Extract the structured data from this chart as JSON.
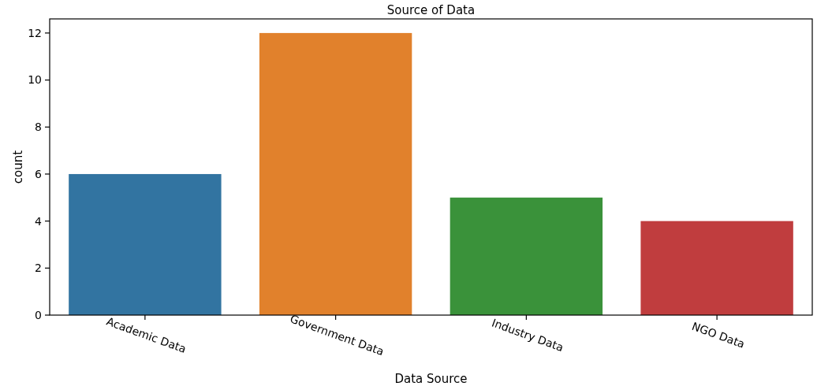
{
  "chart_data": {
    "type": "bar",
    "title": "Source of Data",
    "xlabel": "Data Source",
    "ylabel": "count",
    "categories": [
      "Academic Data",
      "Government Data",
      "Industry Data",
      "NGO Data"
    ],
    "values": [
      6,
      12,
      5,
      4
    ],
    "colors": [
      "#3274a1",
      "#e1812c",
      "#3a923a",
      "#c03d3e"
    ],
    "ylim": [
      0,
      12.6
    ],
    "yticks": [
      0,
      2,
      4,
      6,
      8,
      10,
      12
    ],
    "grid": false
  }
}
